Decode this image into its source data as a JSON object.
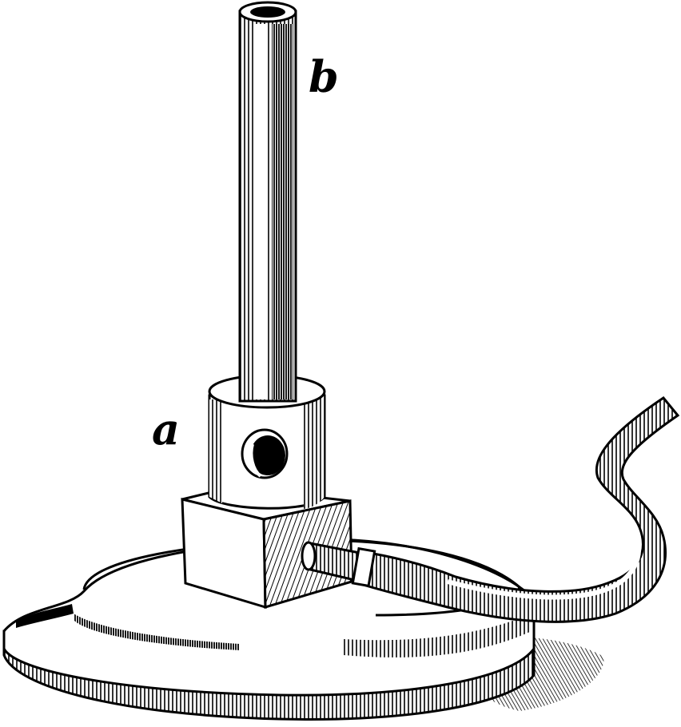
{
  "figure": {
    "labels": {
      "a": "a",
      "b": "b"
    },
    "colors": {
      "ink": "#000000",
      "paper": "#ffffff"
    }
  }
}
